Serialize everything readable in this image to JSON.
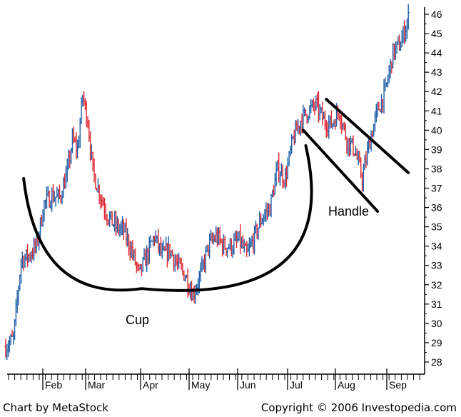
{
  "chart_data": {
    "type": "bar",
    "subtype": "ohlc-price-bars",
    "title": "",
    "xlabel": "",
    "ylabel": "",
    "ylim": [
      28,
      46
    ],
    "y_ticks": [
      28,
      29,
      30,
      31,
      32,
      33,
      34,
      35,
      36,
      37,
      38,
      39,
      40,
      41,
      42,
      43,
      44,
      45,
      46
    ],
    "y_axis_side": "right",
    "x_ticks": [
      "Feb",
      "Mar",
      "Apr",
      "May",
      "Jun",
      "Jul",
      "Aug",
      "Sep"
    ],
    "grid": false,
    "colors": {
      "up": "#1f5fa8",
      "down": "#e0242f",
      "annotation": "#000000"
    },
    "price_path_approx": [
      [
        0,
        28.8
      ],
      [
        3,
        29.2
      ],
      [
        6,
        33.3
      ],
      [
        9,
        33.5
      ],
      [
        12,
        34.0
      ],
      [
        15,
        36.2
      ],
      [
        18,
        36.6
      ],
      [
        21,
        36.5
      ],
      [
        24,
        37.8
      ],
      [
        26,
        39.5
      ],
      [
        28,
        39.0
      ],
      [
        30,
        41.8
      ],
      [
        32,
        40.5
      ],
      [
        34,
        37.8
      ],
      [
        37,
        36.6
      ],
      [
        40,
        35.5
      ],
      [
        43,
        35.0
      ],
      [
        46,
        34.8
      ],
      [
        49,
        33.8
      ],
      [
        52,
        32.5
      ],
      [
        55,
        33.5
      ],
      [
        58,
        34.5
      ],
      [
        61,
        33.5
      ],
      [
        64,
        33.8
      ],
      [
        67,
        33.0
      ],
      [
        70,
        32.5
      ],
      [
        73,
        31.5
      ],
      [
        76,
        32.5
      ],
      [
        79,
        34.0
      ],
      [
        82,
        34.5
      ],
      [
        85,
        34.0
      ],
      [
        88,
        34.0
      ],
      [
        91,
        34.3
      ],
      [
        94,
        33.5
      ],
      [
        97,
        34.5
      ],
      [
        100,
        35.5
      ],
      [
        103,
        36.0
      ],
      [
        106,
        38.0
      ],
      [
        109,
        37.5
      ],
      [
        112,
        39.5
      ],
      [
        115,
        40.5
      ],
      [
        118,
        41.0
      ],
      [
        121,
        41.3
      ],
      [
        124,
        40.5
      ],
      [
        127,
        40.3
      ],
      [
        130,
        41.0
      ],
      [
        133,
        39.5
      ],
      [
        136,
        39.0
      ],
      [
        139,
        37.5
      ],
      [
        142,
        39.5
      ],
      [
        145,
        41.0
      ],
      [
        148,
        42.0
      ],
      [
        151,
        44.0
      ],
      [
        154,
        44.5
      ],
      [
        157,
        45.8
      ]
    ],
    "annotations": [
      {
        "label": "Cup",
        "shape": "arc",
        "from": [
          7,
          37.5
        ],
        "bottom": [
          53,
          31.8
        ],
        "to": [
          117,
          39.2
        ]
      },
      {
        "label": "Handle",
        "shape": "channel",
        "upper": [
          [
            125,
            41.6
          ],
          [
            157,
            37.8
          ]
        ],
        "lower": [
          [
            116,
            40.0
          ],
          [
            145,
            35.8
          ]
        ]
      }
    ]
  },
  "credits": {
    "left": "Chart by MetaStock",
    "right": "Copyright © 2006 Investopedia.com"
  }
}
